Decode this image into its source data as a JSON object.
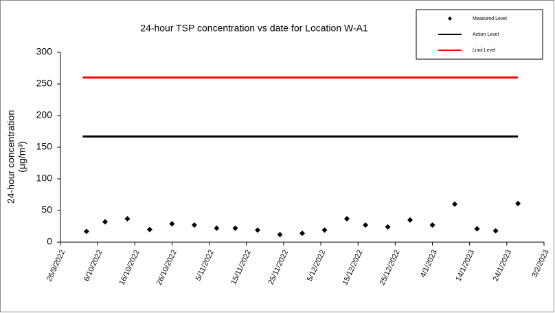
{
  "chart_data": {
    "type": "scatter",
    "title": "24-hour TSP concentration vs date for Location W-A1",
    "y_label": [
      "24-hour concentration",
      "(µg/m³)"
    ],
    "date_format": "d/m/yyyy",
    "xlim": [
      "26/9/2022",
      "3/2/2023"
    ],
    "xticks": [
      "26/9/2022",
      "6/10/2022",
      "16/10/2022",
      "26/10/2022",
      "5/11/2022",
      "15/11/2022",
      "25/11/2022",
      "5/12/2022",
      "15/12/2022",
      "25/12/2022",
      "4/1/2023",
      "14/1/2023",
      "24/1/2023",
      "3/2/2023"
    ],
    "ylim": [
      0,
      300
    ],
    "yticks": [
      0,
      50,
      100,
      150,
      200,
      250,
      300
    ],
    "legend_position": "upper right",
    "series": [
      {
        "name": "Measured Level",
        "color": "#000000",
        "mode": "markers",
        "x": [
          "3/10/2022",
          "8/10/2022",
          "14/10/2022",
          "20/10/2022",
          "26/10/2022",
          "1/11/2022",
          "7/11/2022",
          "12/11/2022",
          "18/11/2022",
          "24/11/2022",
          "30/11/2022",
          "6/12/2022",
          "12/12/2022",
          "17/12/2022",
          "23/12/2022",
          "29/12/2022",
          "4/1/2023",
          "10/1/2023",
          "16/1/2023",
          "21/1/2023",
          "27/1/2023"
        ],
        "values": [
          17,
          32,
          37,
          20,
          29,
          27,
          22,
          22,
          19,
          12,
          14,
          19,
          37,
          27,
          24,
          35,
          27,
          60,
          21,
          18,
          61
        ]
      },
      {
        "name": "Action Level",
        "color": "#000000",
        "mode": "line",
        "x": [
          "2/10/2022",
          "27/1/2023"
        ],
        "values": [
          167,
          167
        ]
      },
      {
        "name": "Limit Level",
        "color": "#ff0000",
        "mode": "line",
        "x": [
          "2/10/2022",
          "27/1/2023"
        ],
        "values": [
          260,
          260
        ]
      }
    ]
  }
}
